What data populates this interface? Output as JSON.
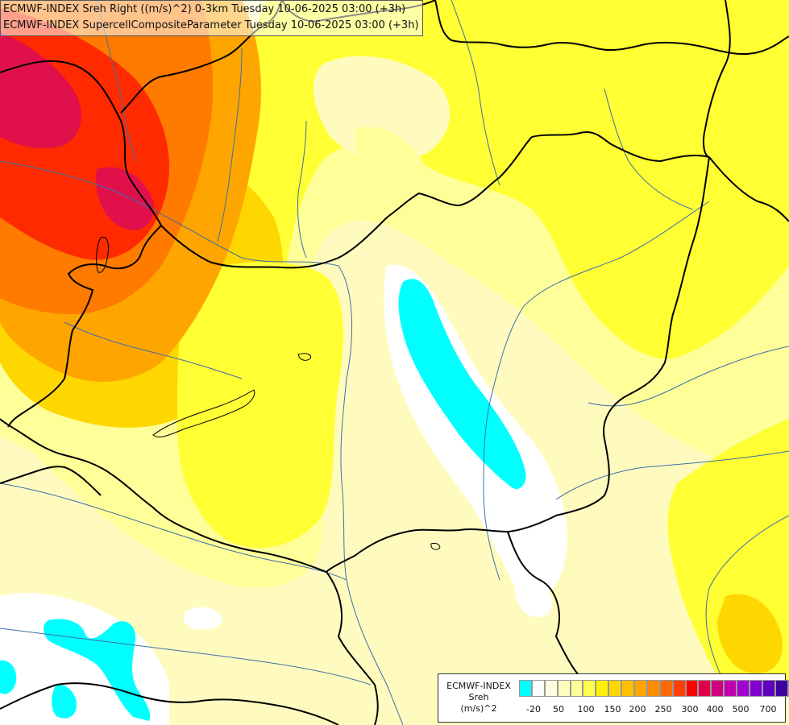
{
  "titles": [
    "ECMWF-INDEX Sreh Right ((m/s)^2) 0-3km Tuesday 10-06-2025 03:00 (+3h)",
    "ECMWF-INDEX SupercellCompositeParameter Tuesday 10-06-2025 03:00 (+3h)"
  ],
  "legend": {
    "source": "ECMWF-INDEX",
    "parameter": "Sreh",
    "unit": "(m/s)^2",
    "ticks": [
      "-20",
      "50",
      "100",
      "150",
      "200",
      "250",
      "300",
      "400",
      "500",
      "700"
    ],
    "colors": [
      "#00ffff",
      "#ffffff",
      "#fffde0",
      "#fffbbf",
      "#ffff99",
      "#ffff4d",
      "#fff000",
      "#ffd700",
      "#ffc000",
      "#ffa500",
      "#ff8c00",
      "#ff6a00",
      "#ff4000",
      "#ff0000",
      "#e0004a",
      "#d00080",
      "#c000b0",
      "#a000d0",
      "#8000d0",
      "#6000c0",
      "#4000a0",
      "#200080",
      "#000066"
    ]
  },
  "map": {
    "field_colors": {
      "pale": "#fffbbf",
      "light": "#ffff99",
      "yellow": "#ffff33",
      "gold": "#ffd700",
      "orange": "#ffa500",
      "dark_orange": "#ff7b00",
      "red": "#ff2a00",
      "crimson": "#e0104a",
      "white": "#ffffff",
      "cyan": "#00ffff"
    },
    "border_color": "#000000",
    "river_color": "#3f6ea8"
  }
}
